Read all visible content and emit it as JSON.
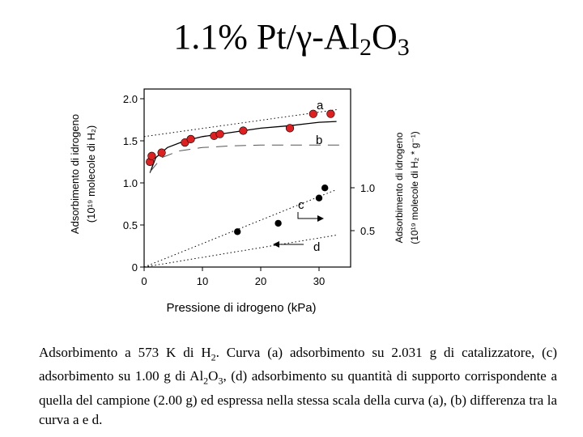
{
  "title": {
    "prefix": "1.1% Pt/γ-Al",
    "sub1": "2",
    "mid": "O",
    "sub2": "3"
  },
  "chart_data": {
    "type": "scatter",
    "xlabel": "Pressione di idrogeno (kPa)",
    "ylabel_left_line1": "Adsorbimento di idrogeno",
    "ylabel_left_line2": "(10¹⁹ molecole di H₂)",
    "ylabel_right_line1": "Adsorbimento di idrogeno",
    "ylabel_right_line2": "(10¹⁹ molecole di H₂ * g⁻¹)",
    "xlim": [
      0,
      35
    ],
    "ylim": [
      0,
      2.0
    ],
    "x_ticks": [
      "0",
      "10",
      "20",
      "30"
    ],
    "y_ticks_left": [
      "0",
      "0.5",
      "1.0",
      "1.5",
      "2.0"
    ],
    "y_ticks_right": [
      "0.5",
      "1.0"
    ],
    "series": [
      {
        "name": "a",
        "color": "#e02020",
        "points": [
          [
            1,
            1.25
          ],
          [
            1.3,
            1.32
          ],
          [
            3,
            1.36
          ],
          [
            7,
            1.48
          ],
          [
            8,
            1.52
          ],
          [
            12,
            1.56
          ],
          [
            13,
            1.58
          ],
          [
            17,
            1.62
          ],
          [
            25,
            1.65
          ],
          [
            29,
            1.82
          ],
          [
            32,
            1.82
          ]
        ]
      },
      {
        "name": "c",
        "color": "#000000",
        "points": [
          [
            16,
            0.42
          ],
          [
            23,
            0.52
          ],
          [
            30,
            0.82
          ],
          [
            31,
            0.94
          ]
        ]
      }
    ],
    "curves": [
      {
        "name": "a-fit",
        "style": "solid",
        "points": [
          [
            1,
            1.12
          ],
          [
            2,
            1.3
          ],
          [
            4,
            1.42
          ],
          [
            7,
            1.5
          ],
          [
            10,
            1.55
          ],
          [
            15,
            1.6
          ],
          [
            20,
            1.65
          ],
          [
            25,
            1.68
          ],
          [
            30,
            1.72
          ],
          [
            33,
            1.73
          ]
        ]
      },
      {
        "name": "a-dotted",
        "style": "dotted",
        "points": [
          [
            0,
            1.55
          ],
          [
            33,
            1.87
          ]
        ]
      },
      {
        "name": "b",
        "style": "dashed",
        "points": [
          [
            1,
            1.13
          ],
          [
            3,
            1.3
          ],
          [
            6,
            1.38
          ],
          [
            10,
            1.42
          ],
          [
            15,
            1.44
          ],
          [
            20,
            1.45
          ],
          [
            25,
            1.45
          ],
          [
            30,
            1.45
          ],
          [
            34,
            1.45
          ]
        ]
      },
      {
        "name": "c-line",
        "style": "dotted",
        "points": [
          [
            0,
            0
          ],
          [
            33,
            0.92
          ]
        ]
      },
      {
        "name": "d-line",
        "style": "dotted",
        "points": [
          [
            0,
            0
          ],
          [
            33,
            0.38
          ]
        ]
      }
    ],
    "labels": {
      "a": "a",
      "b": "b",
      "c": "c",
      "d": "d"
    }
  },
  "caption": {
    "t1": "Adsorbimento a 573 K di H",
    "s1": "2",
    "t2": ". Curva (a) adsorbimento su 2.031 g di catalizzatore,  (c) adsorbimento su 1.00 g di Al",
    "s2": "2",
    "t3": "O",
    "s3": "3",
    "t4": ", (d) adsorbimento su quantità di supporto corrispondente a quella del campione (2.00 g) ed espressa nella stessa scala della curva (a), (b) differenza tra la curva a e d."
  }
}
